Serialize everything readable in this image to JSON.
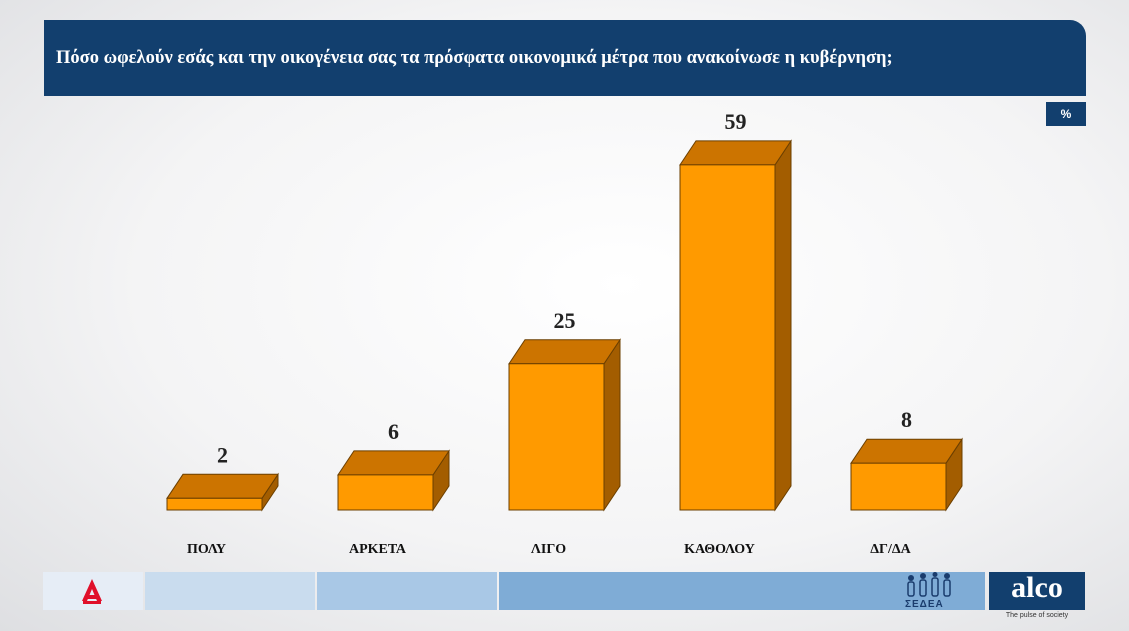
{
  "header": {
    "title": "Πόσο ωφελούν εσάς και την οικογένεια σας τα πρόσφατα οικονομικά μέτρα που ανακοίνωσε η κυβέρνηση;",
    "unit_badge": "%"
  },
  "colors": {
    "header_bg": "#123f6e",
    "bar_front": "#ff9a00",
    "bar_top": "#cc7400",
    "bar_side": "#a35d00",
    "bar_outline": "#6b3f00"
  },
  "chart_data": {
    "type": "bar",
    "style": "3d",
    "title": "Πόσο ωφελούν εσάς και την οικογένεια σας τα πρόσφατα οικονομικά μέτρα που ανακοίνωσε η κυβέρνηση;",
    "unit": "%",
    "categories": [
      "ΠΟΛΥ",
      "ΑΡΚΕΤΑ",
      "ΛΙΓΟ",
      "ΚΑΘΟΛΟΥ",
      "ΔΓ/ΔΑ"
    ],
    "values": [
      2,
      6,
      25,
      59,
      8
    ],
    "grid": false,
    "legend": false
  },
  "footer": {
    "sedea_label": "ΣΕΔΕΑ",
    "brand": "alco",
    "brand_tagline": "The pulse of society"
  }
}
